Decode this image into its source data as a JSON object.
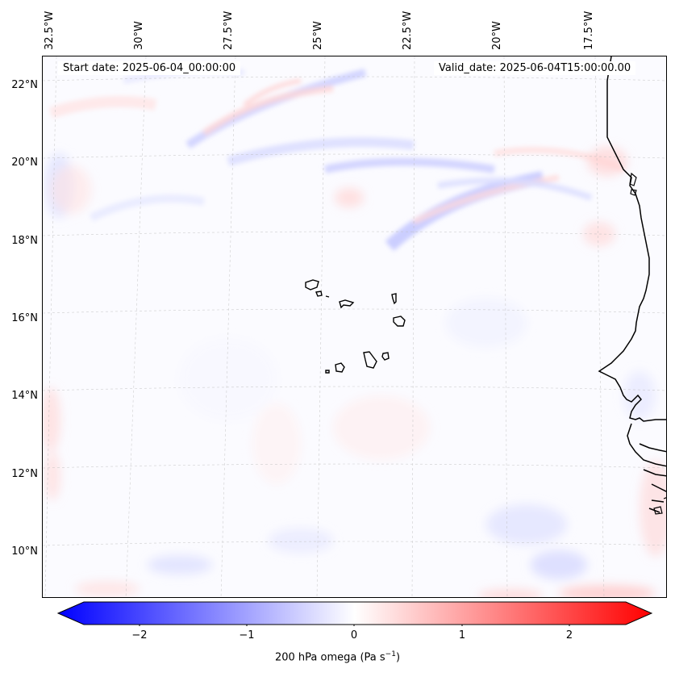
{
  "map": {
    "start_date": "Start date: 2025-06-04_00:00:00",
    "valid_date": "Valid_date: 2025-06-04T15:00:00.00",
    "lon_labels": [
      "32.5°W",
      "30°W",
      "27.5°W",
      "25°W",
      "22.5°W",
      "20°W",
      "17.5°W"
    ],
    "lat_labels": [
      "22°N",
      "20°N",
      "18°N",
      "16°N",
      "14°N",
      "12°N",
      "10°N"
    ],
    "field_colors": {
      "negative": "#0000ff",
      "zero": "#ffffff",
      "positive": "#ff0000"
    }
  },
  "colorbar": {
    "ticks": [
      "−2",
      "−1",
      "0",
      "1",
      "2"
    ],
    "label_main": "200 hPa omega (Pa s",
    "label_sup": "−1",
    "label_end": ")",
    "min": -2.6,
    "max": 2.6
  }
}
